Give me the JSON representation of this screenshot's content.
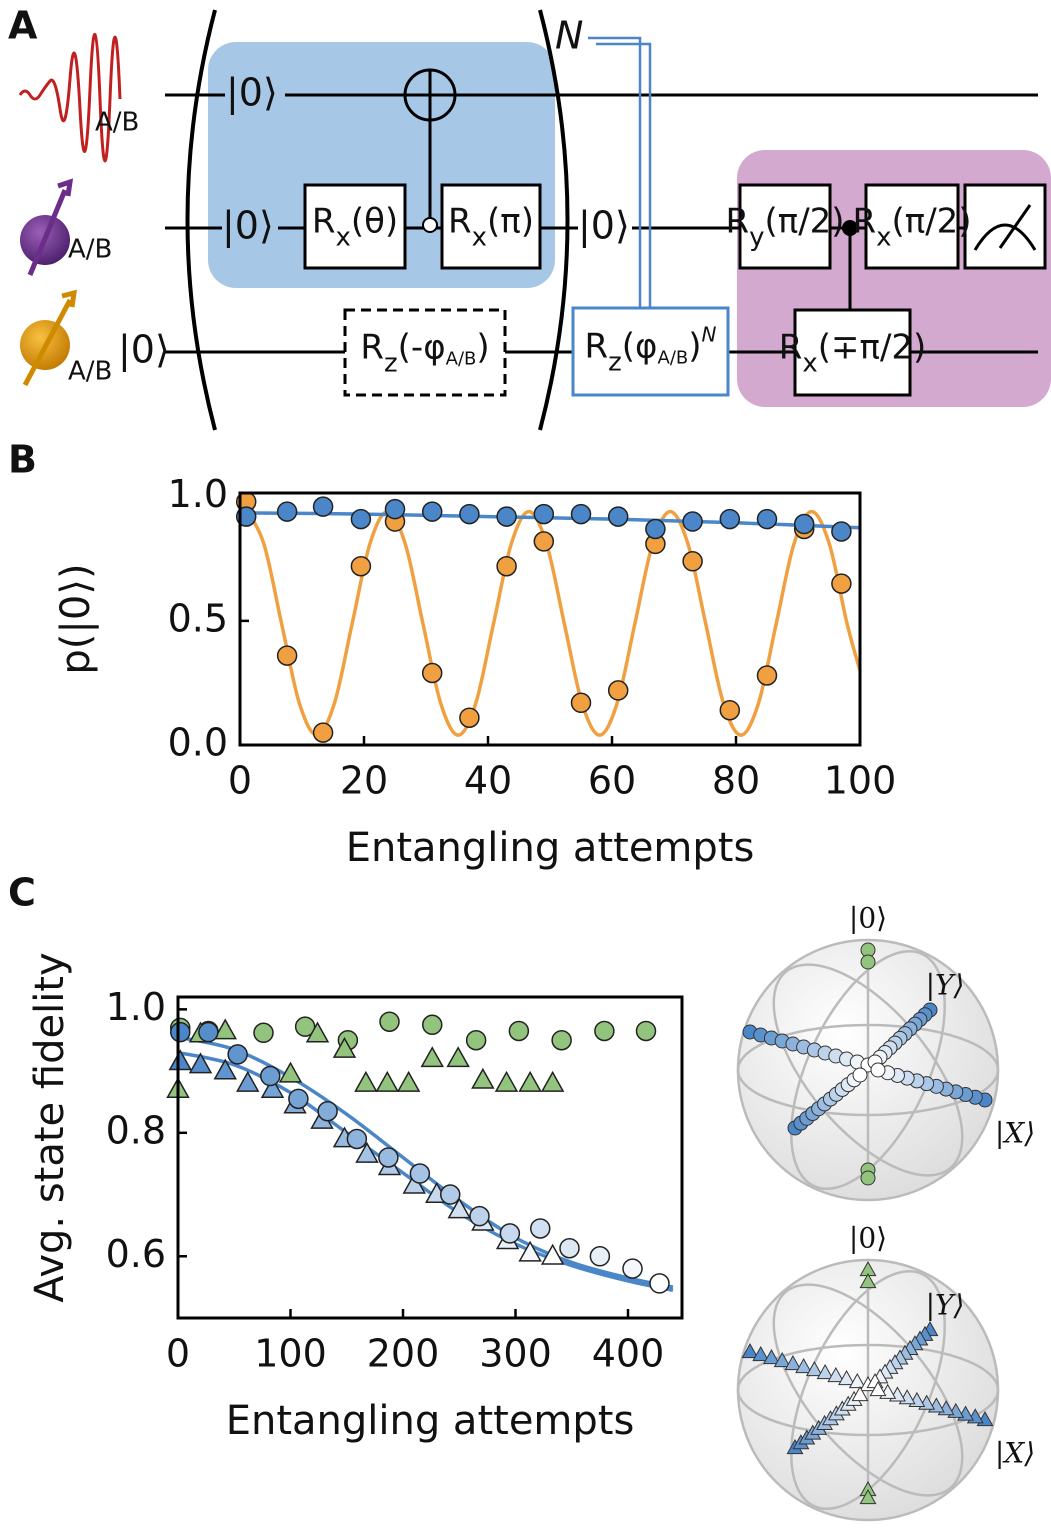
{
  "panels": [
    "A",
    "B",
    "C"
  ],
  "circuit": {
    "loop_label": "N",
    "qubit_labels": [
      "A/B",
      "A/B",
      "A/B"
    ],
    "state_labels": [
      "|0⟩",
      "|0⟩",
      "|0⟩",
      "|0⟩"
    ],
    "gates": [
      {
        "parts": [
          {
            "text": "R"
          },
          {
            "text": "x",
            "pos": "sub"
          },
          {
            "text": "(θ)"
          }
        ]
      },
      {
        "parts": [
          {
            "text": "R"
          },
          {
            "text": "x",
            "pos": "sub"
          },
          {
            "text": "(π)"
          }
        ]
      },
      {
        "parts": [
          {
            "text": "R"
          },
          {
            "text": "z",
            "pos": "sub"
          },
          {
            "text": "(-φ"
          },
          {
            "text": "A/B",
            "pos": "sub"
          },
          {
            "text": ")"
          }
        ]
      },
      {
        "parts": [
          {
            "text": "R"
          },
          {
            "text": "z",
            "pos": "sub"
          },
          {
            "text": "(φ"
          },
          {
            "text": "A/B",
            "pos": "sub"
          },
          {
            "text": ")"
          },
          {
            "text": "N",
            "pos": "sup"
          }
        ]
      },
      {
        "parts": [
          {
            "text": "R"
          },
          {
            "text": "y",
            "pos": "sub"
          },
          {
            "text": "(π/2)"
          }
        ]
      },
      {
        "parts": [
          {
            "text": "R"
          },
          {
            "text": "x",
            "pos": "sub"
          },
          {
            "text": "(π/2)"
          }
        ]
      },
      {
        "parts": [
          {
            "text": "R"
          },
          {
            "text": "x",
            "pos": "sub"
          },
          {
            "text": "(∓π/2)"
          }
        ]
      }
    ]
  },
  "chart_data": [
    {
      "type": "scatter",
      "x_label": "Entangling attempts",
      "y_label": "p(|0⟩)",
      "xlim": [
        0,
        100
      ],
      "ylim": [
        0,
        1.015
      ],
      "xticks": [
        0,
        20,
        40,
        60,
        80,
        100
      ],
      "yticks": [
        {
          "value": 0,
          "label": "0.0"
        },
        {
          "value": 0.5,
          "label": "0.5"
        },
        {
          "value": 1,
          "label": "1.0"
        }
      ],
      "series": [
        {
          "style": "line",
          "color": "#f0a040",
          "x": [
            0,
            1,
            3.85,
            6.7,
            9.55,
            12.4,
            15.25,
            18.1,
            20.95,
            23.8,
            26.65,
            29.5,
            32.35,
            35.2,
            38.05,
            40.9,
            43.75,
            46.6,
            49.45,
            52.3,
            55.15,
            58,
            60.85,
            63.7,
            66.55,
            69.4,
            72.25,
            75.1,
            77.95,
            80.8,
            83.65,
            86.5,
            89.35,
            92.2,
            95.05,
            97.9,
            100
          ],
          "values": [
            0.93,
            0.94,
            0.81,
            0.49,
            0.17,
            0.04,
            0.17,
            0.49,
            0.81,
            0.94,
            0.81,
            0.49,
            0.17,
            0.04,
            0.17,
            0.49,
            0.81,
            0.94,
            0.81,
            0.49,
            0.17,
            0.04,
            0.17,
            0.49,
            0.81,
            0.94,
            0.81,
            0.49,
            0.17,
            0.04,
            0.17,
            0.49,
            0.81,
            0.94,
            0.81,
            0.49,
            0.3
          ]
        },
        {
          "style": "line",
          "color": "#4a86c8",
          "x": [
            0,
            20,
            40,
            60,
            80,
            100
          ],
          "values": [
            0.935,
            0.93,
            0.92,
            0.91,
            0.895,
            0.875
          ]
        },
        {
          "style": "points",
          "marker": "circle",
          "color": "#f0a040",
          "x": [
            1,
            7.6,
            13.4,
            19.5,
            25,
            31,
            37,
            43,
            49,
            55,
            61,
            67,
            73,
            79,
            85,
            91,
            97
          ],
          "values": [
            0.98,
            0.36,
            0.05,
            0.72,
            0.9,
            0.29,
            0.11,
            0.72,
            0.82,
            0.17,
            0.22,
            0.81,
            0.74,
            0.14,
            0.28,
            0.87,
            0.65
          ]
        },
        {
          "style": "points",
          "marker": "circle",
          "color": "#4a86c8",
          "x": [
            1,
            7.6,
            13.4,
            19.5,
            25,
            31,
            37,
            43,
            49,
            55,
            61,
            67,
            73,
            79,
            85,
            91,
            97
          ],
          "values": [
            0.92,
            0.94,
            0.96,
            0.91,
            0.95,
            0.94,
            0.93,
            0.92,
            0.93,
            0.93,
            0.92,
            0.87,
            0.9,
            0.91,
            0.91,
            0.89,
            0.86
          ]
        }
      ]
    },
    {
      "type": "scatter",
      "x_label": "Entangling attempts",
      "y_label": "Avg. state fidelity",
      "xlim": [
        0,
        448
      ],
      "ylim": [
        0.5,
        1.02
      ],
      "xticks": [
        0,
        100,
        200,
        300,
        400
      ],
      "yticks": [
        0.6,
        0.8,
        {
          "value": 1,
          "label": "1.0"
        }
      ],
      "series": [
        {
          "style": "line",
          "color": "#4a86c8",
          "x": [
            0,
            50,
            100,
            150,
            200,
            250,
            300,
            350,
            400,
            440
          ],
          "values": [
            0.955,
            0.935,
            0.89,
            0.83,
            0.76,
            0.69,
            0.63,
            0.59,
            0.565,
            0.55
          ]
        },
        {
          "style": "line",
          "color": "#4a86c8",
          "x": [
            0,
            50,
            100,
            150,
            200,
            250,
            300,
            350,
            400,
            440
          ],
          "values": [
            0.93,
            0.91,
            0.865,
            0.8,
            0.735,
            0.67,
            0.62,
            0.585,
            0.56,
            0.545
          ]
        },
        {
          "style": "points",
          "marker": "circle",
          "color": "#93c47d",
          "x": [
            2,
            27,
            76,
            113,
            151,
            188,
            226,
            265,
            303,
            341,
            379,
            416
          ],
          "values": [
            0.97,
            0.965,
            0.962,
            0.972,
            0.95,
            0.98,
            0.975,
            0.95,
            0.965,
            0.95,
            0.965,
            0.965
          ]
        },
        {
          "style": "points",
          "marker": "triangle",
          "color": "#93c47d",
          "x": [
            0,
            20,
            42,
            100,
            124,
            148,
            167,
            186,
            205,
            226,
            249,
            271,
            292,
            313,
            333
          ],
          "values": [
            0.87,
            0.96,
            0.965,
            0.895,
            0.96,
            0.935,
            0.88,
            0.88,
            0.88,
            0.92,
            0.92,
            0.885,
            0.88,
            0.88,
            0.88
          ]
        },
        {
          "style": "points",
          "marker": "triangle",
          "colors": [
            "#4a86c8",
            "#ffffff"
          ],
          "x": [
            2,
            20,
            42,
            62,
            84,
            104,
            128,
            148,
            168,
            188,
            210,
            230,
            250,
            271,
            293,
            313,
            333
          ],
          "values": [
            0.915,
            0.91,
            0.9,
            0.88,
            0.87,
            0.845,
            0.82,
            0.79,
            0.765,
            0.745,
            0.715,
            0.7,
            0.675,
            0.655,
            0.625,
            0.605,
            0.6
          ]
        },
        {
          "style": "points",
          "marker": "circle",
          "colors": [
            "#4a86c8",
            "#ffffff"
          ],
          "x": [
            2,
            27,
            53,
            82,
            107,
            133,
            159,
            187,
            215,
            242,
            268,
            295,
            322,
            348,
            375,
            404,
            428
          ],
          "values": [
            0.963,
            0.963,
            0.927,
            0.892,
            0.855,
            0.835,
            0.79,
            0.76,
            0.734,
            0.7,
            0.665,
            0.637,
            0.645,
            0.613,
            0.6,
            0.58,
            0.556
          ]
        }
      ]
    }
  ],
  "bloch": [
    {
      "labels": [
        "|0⟩",
        "|Y⟩",
        "|X⟩"
      ]
    },
    {
      "labels": [
        "|0⟩",
        "|Y⟩",
        "|X⟩"
      ]
    }
  ]
}
